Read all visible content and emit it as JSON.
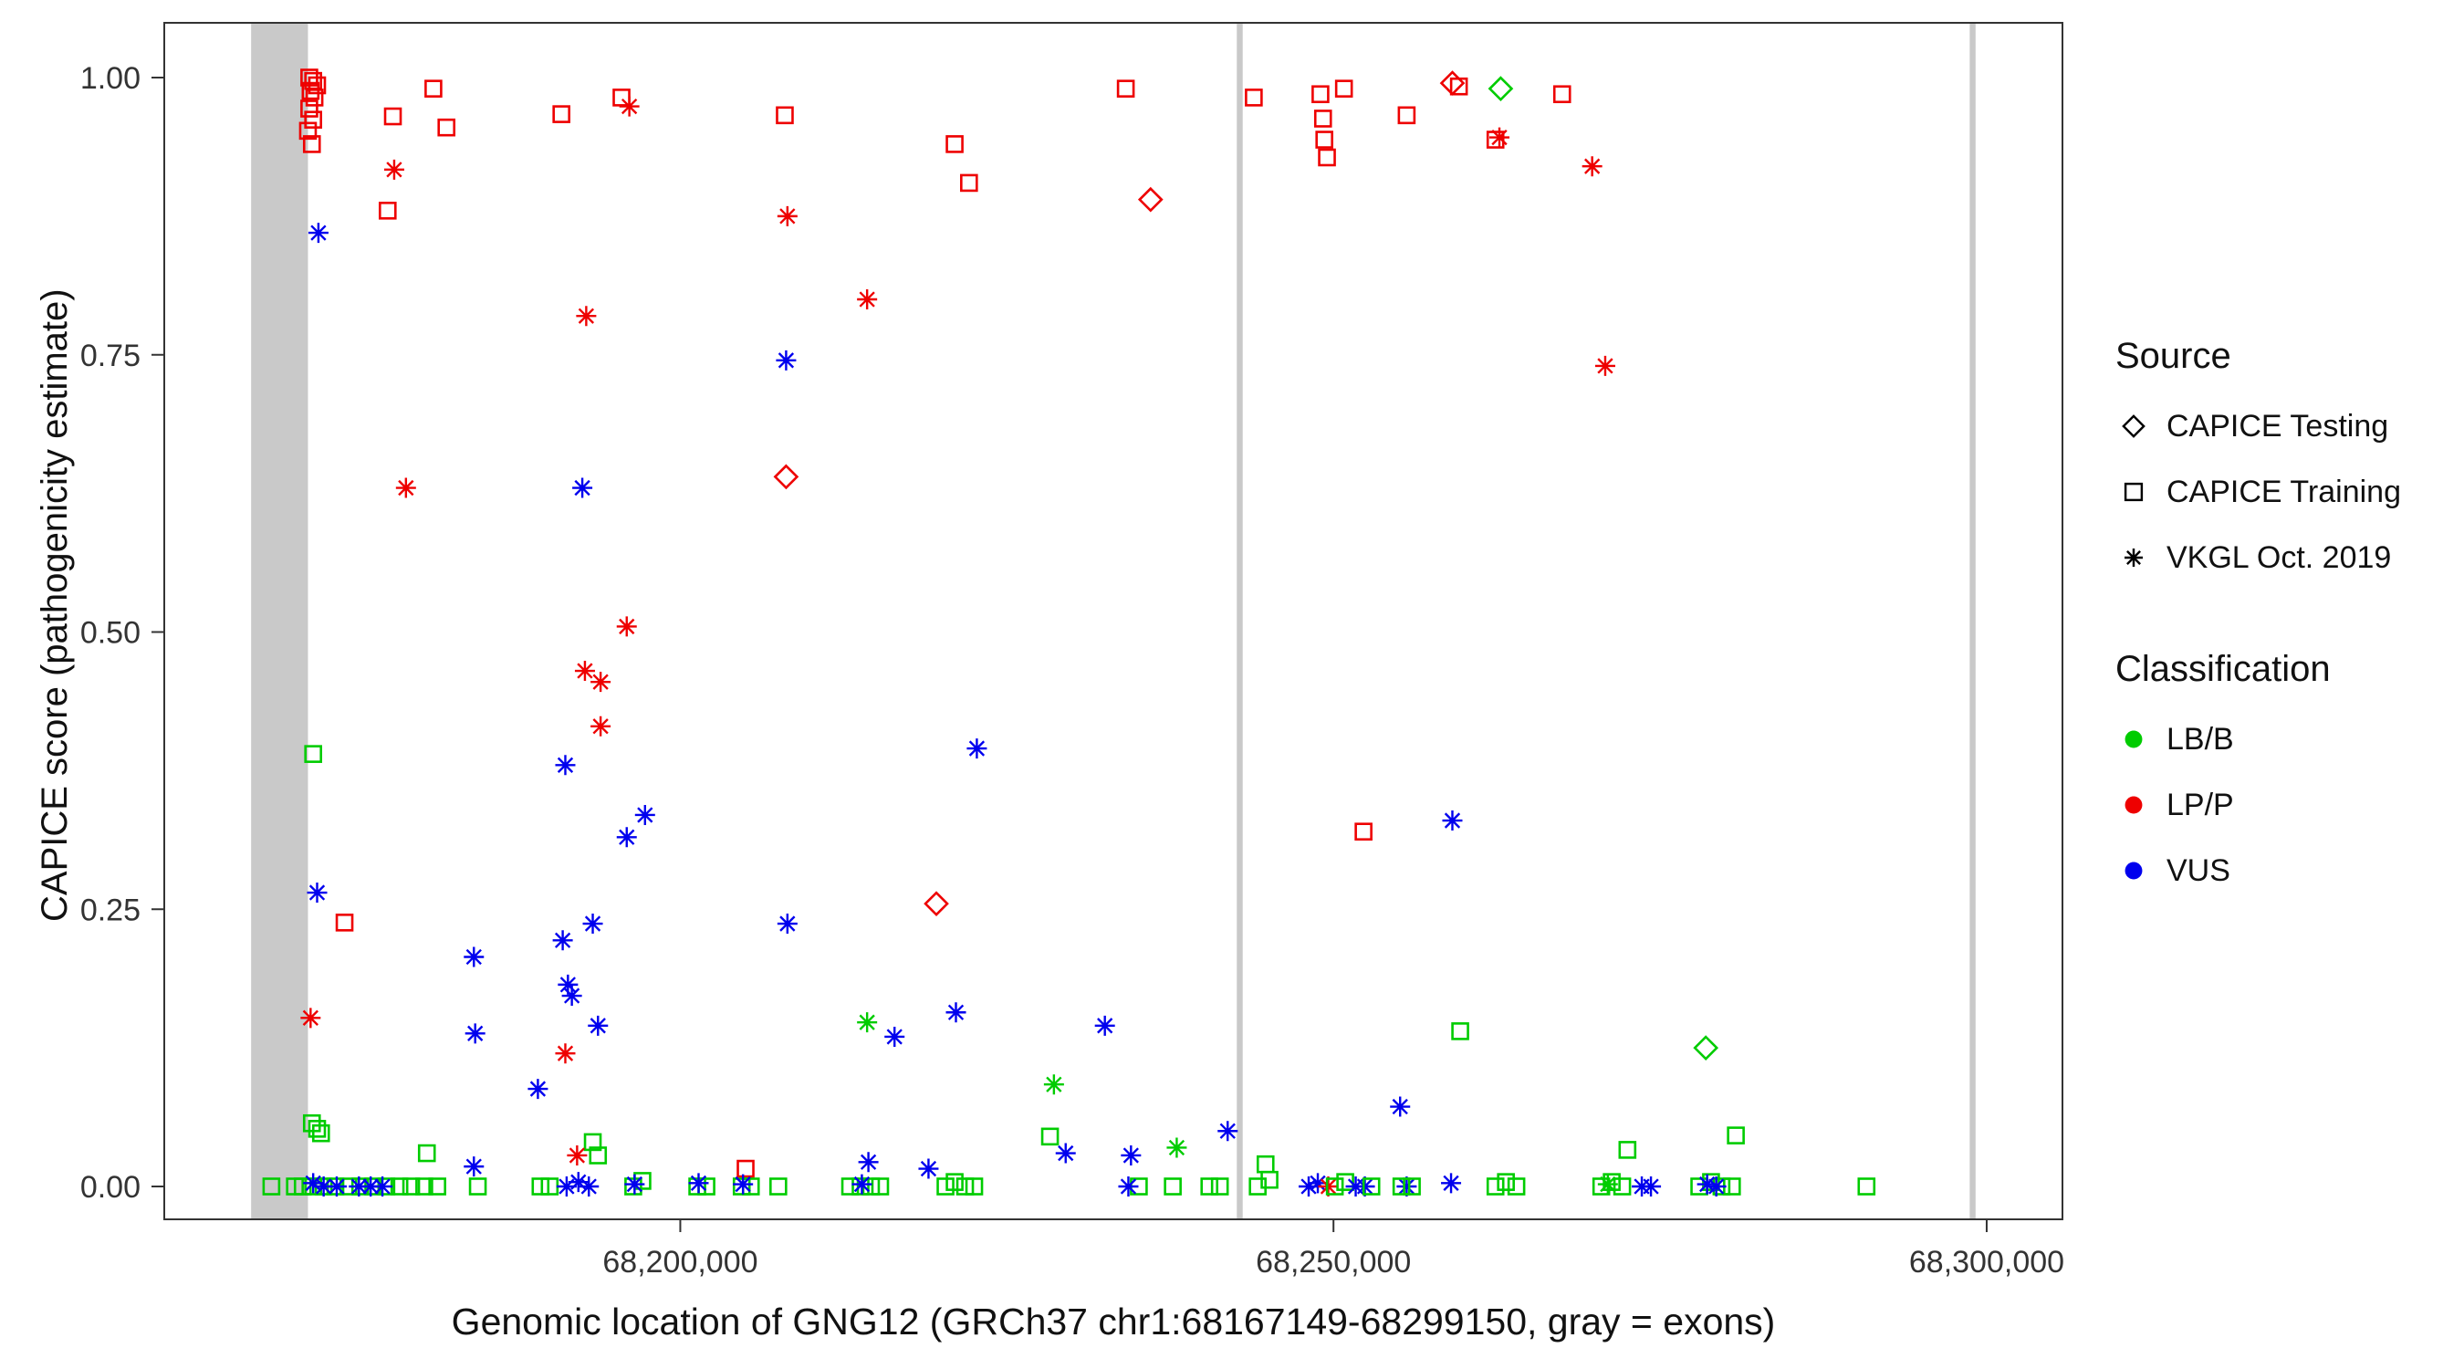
{
  "figure": {
    "ylabel": "CAPICE score (pathogenicity estimate)",
    "xlabel": "Genomic location of GNG12 (GRCh37 chr1:68167149-68299150, gray = exons)"
  },
  "legend": {
    "source_title": "Source",
    "source_items": [
      {
        "label": "CAPICE Testing",
        "shape": "diamond"
      },
      {
        "label": "CAPICE Training",
        "shape": "square"
      },
      {
        "label": "VKGL Oct. 2019",
        "shape": "asterisk"
      }
    ],
    "classification_title": "Classification",
    "classification_items": [
      {
        "label": "LB/B",
        "color": "#00cc00"
      },
      {
        "label": "LP/P",
        "color": "#ee0000"
      },
      {
        "label": "VUS",
        "color": "#0000ee"
      }
    ]
  },
  "chart_data": {
    "type": "scatter",
    "title": "",
    "xlabel": "Genomic location of GNG12 (GRCh37 chr1:68167149-68299150, gray = exons)",
    "ylabel": "CAPICE score (pathogenicity estimate)",
    "grid": "off",
    "legend_position": "right",
    "x_axis": {
      "min": 68160500,
      "max": 68305800,
      "ticks": [
        {
          "value": 68200000,
          "label": "68,200,000"
        },
        {
          "value": 68250000,
          "label": "68,250,000"
        },
        {
          "value": 68300000,
          "label": "68,300,000"
        }
      ]
    },
    "y_axis": {
      "min": -0.05,
      "max": 1.05,
      "ticks": [
        {
          "value": 0.0,
          "label": "0.00"
        },
        {
          "value": 0.25,
          "label": "0.25"
        },
        {
          "value": 0.5,
          "label": "0.50"
        },
        {
          "value": 0.75,
          "label": "0.75"
        },
        {
          "value": 1.0,
          "label": "1.00"
        }
      ]
    },
    "exon_band_color": "#c9c9c9",
    "exons_gray": [
      [
        68167149,
        68171500
      ],
      [
        68242600,
        68243050
      ],
      [
        68298700,
        68299150
      ]
    ],
    "source_shapes": {
      "T": "CAPICE Testing (open diamond)",
      "R": "CAPICE Training (open square)",
      "V": "VKGL Oct. 2019 (asterisk)"
    },
    "classification_colors": {
      "B": {
        "label": "LB/B",
        "hex": "#00cc00"
      },
      "P": {
        "label": "LP/P",
        "hex": "#ee0000"
      },
      "U": {
        "label": "VUS",
        "hex": "#0000ee"
      }
    },
    "point_format": [
      "genomic_position",
      "capice_score",
      "source",
      "classification"
    ],
    "points": [
      [
        68171600,
        1.0,
        "R",
        "P"
      ],
      [
        68171900,
        0.997,
        "R",
        "P"
      ],
      [
        68172200,
        0.993,
        "R",
        "P"
      ],
      [
        68171700,
        0.988,
        "R",
        "P"
      ],
      [
        68172000,
        0.982,
        "R",
        "P"
      ],
      [
        68171600,
        0.972,
        "R",
        "P"
      ],
      [
        68171900,
        0.962,
        "R",
        "P"
      ],
      [
        68171500,
        0.952,
        "R",
        "P"
      ],
      [
        68171800,
        0.94,
        "R",
        "P"
      ],
      [
        68172300,
        0.86,
        "V",
        "U"
      ],
      [
        68171900,
        0.39,
        "R",
        "B"
      ],
      [
        68172200,
        0.265,
        "V",
        "U"
      ],
      [
        68171700,
        0.152,
        "V",
        "P"
      ],
      [
        68174300,
        0.238,
        "R",
        "P"
      ],
      [
        68171800,
        0.057,
        "R",
        "B"
      ],
      [
        68172200,
        0.052,
        "R",
        "B"
      ],
      [
        68172500,
        0.048,
        "R",
        "B"
      ],
      [
        68168700,
        0,
        "R",
        "B"
      ],
      [
        68170500,
        0,
        "R",
        "B"
      ],
      [
        68171100,
        0,
        "R",
        "B"
      ],
      [
        68171900,
        0,
        "R",
        "B"
      ],
      [
        68172700,
        0,
        "R",
        "B"
      ],
      [
        68173600,
        0,
        "R",
        "B"
      ],
      [
        68174600,
        0,
        "R",
        "B"
      ],
      [
        68175500,
        0,
        "R",
        "B"
      ],
      [
        68176500,
        0,
        "R",
        "B"
      ],
      [
        68177500,
        0,
        "R",
        "B"
      ],
      [
        68178500,
        0,
        "R",
        "B"
      ],
      [
        68179400,
        0,
        "R",
        "B"
      ],
      [
        68180400,
        0,
        "R",
        "B"
      ],
      [
        68181400,
        0,
        "R",
        "B"
      ],
      [
        68171900,
        0.003,
        "V",
        "U"
      ],
      [
        68172700,
        0,
        "V",
        "U"
      ],
      [
        68173700,
        0,
        "V",
        "U"
      ],
      [
        68175400,
        0,
        "V",
        "U"
      ],
      [
        68176300,
        0,
        "V",
        "U"
      ],
      [
        68177200,
        0,
        "V",
        "U"
      ],
      [
        68178000,
        0.965,
        "R",
        "P"
      ],
      [
        68178100,
        0.917,
        "V",
        "P"
      ],
      [
        68177600,
        0.88,
        "R",
        "P"
      ],
      [
        68181100,
        0.99,
        "R",
        "P"
      ],
      [
        68182100,
        0.955,
        "R",
        "P"
      ],
      [
        68179000,
        0.63,
        "V",
        "P"
      ],
      [
        68180600,
        0.03,
        "R",
        "B"
      ],
      [
        68184200,
        0.207,
        "V",
        "U"
      ],
      [
        68184300,
        0.138,
        "V",
        "U"
      ],
      [
        68184200,
        0.018,
        "V",
        "U"
      ],
      [
        68184500,
        0,
        "R",
        "B"
      ],
      [
        68190900,
        0.967,
        "R",
        "P"
      ],
      [
        68195500,
        0.982,
        "R",
        "P"
      ],
      [
        68196100,
        0.974,
        "V",
        "P"
      ],
      [
        68192800,
        0.785,
        "V",
        "P"
      ],
      [
        68192500,
        0.63,
        "V",
        "U"
      ],
      [
        68195900,
        0.505,
        "V",
        "P"
      ],
      [
        68192700,
        0.465,
        "V",
        "P"
      ],
      [
        68193900,
        0.455,
        "V",
        "P"
      ],
      [
        68193900,
        0.415,
        "V",
        "P"
      ],
      [
        68191200,
        0.38,
        "V",
        "U"
      ],
      [
        68197300,
        0.335,
        "V",
        "U"
      ],
      [
        68195900,
        0.315,
        "V",
        "U"
      ],
      [
        68193300,
        0.237,
        "V",
        "U"
      ],
      [
        68191000,
        0.222,
        "V",
        "U"
      ],
      [
        68191400,
        0.182,
        "V",
        "U"
      ],
      [
        68191700,
        0.172,
        "V",
        "U"
      ],
      [
        68193700,
        0.145,
        "V",
        "U"
      ],
      [
        68191200,
        0.12,
        "V",
        "P"
      ],
      [
        68189100,
        0.088,
        "V",
        "U"
      ],
      [
        68193300,
        0.04,
        "R",
        "B"
      ],
      [
        68193700,
        0.028,
        "R",
        "B"
      ],
      [
        68192100,
        0.028,
        "V",
        "P"
      ],
      [
        68189300,
        0,
        "R",
        "B"
      ],
      [
        68190000,
        0,
        "R",
        "B"
      ],
      [
        68191300,
        0,
        "V",
        "U"
      ],
      [
        68192200,
        0.004,
        "V",
        "U"
      ],
      [
        68193000,
        0,
        "V",
        "U"
      ],
      [
        68196400,
        0,
        "R",
        "B"
      ],
      [
        68197100,
        0.005,
        "R",
        "B"
      ],
      [
        68196500,
        0.002,
        "V",
        "U"
      ],
      [
        68208000,
        0.966,
        "R",
        "P"
      ],
      [
        68208200,
        0.875,
        "V",
        "P"
      ],
      [
        68208100,
        0.745,
        "V",
        "U"
      ],
      [
        68208100,
        0.64,
        "T",
        "P"
      ],
      [
        68208200,
        0.237,
        "V",
        "U"
      ],
      [
        68205000,
        0.016,
        "R",
        "P"
      ],
      [
        68201300,
        0,
        "R",
        "B"
      ],
      [
        68202000,
        0,
        "R",
        "B"
      ],
      [
        68204700,
        0,
        "R",
        "B"
      ],
      [
        68205400,
        0,
        "R",
        "B"
      ],
      [
        68207500,
        0,
        "R",
        "B"
      ],
      [
        68201400,
        0.003,
        "V",
        "U"
      ],
      [
        68204800,
        0.002,
        "V",
        "U"
      ],
      [
        68214300,
        0.8,
        "V",
        "P"
      ],
      [
        68221000,
        0.94,
        "R",
        "P"
      ],
      [
        68222100,
        0.905,
        "R",
        "P"
      ],
      [
        68222700,
        0.395,
        "V",
        "U"
      ],
      [
        68219600,
        0.255,
        "T",
        "P"
      ],
      [
        68214300,
        0.148,
        "V",
        "B"
      ],
      [
        68216400,
        0.135,
        "V",
        "U"
      ],
      [
        68221100,
        0.157,
        "V",
        "U"
      ],
      [
        68214400,
        0.022,
        "V",
        "U"
      ],
      [
        68219000,
        0.016,
        "V",
        "U"
      ],
      [
        68213000,
        0,
        "R",
        "B"
      ],
      [
        68213800,
        0,
        "R",
        "B"
      ],
      [
        68214600,
        0,
        "R",
        "B"
      ],
      [
        68215300,
        0,
        "R",
        "B"
      ],
      [
        68220300,
        0,
        "R",
        "B"
      ],
      [
        68221000,
        0.004,
        "R",
        "B"
      ],
      [
        68221800,
        0,
        "R",
        "B"
      ],
      [
        68222500,
        0,
        "R",
        "B"
      ],
      [
        68213900,
        0.002,
        "V",
        "U"
      ],
      [
        68234100,
        0.99,
        "R",
        "P"
      ],
      [
        68236000,
        0.89,
        "T",
        "P"
      ],
      [
        68232500,
        0.145,
        "V",
        "U"
      ],
      [
        68228600,
        0.092,
        "V",
        "B"
      ],
      [
        68228300,
        0.045,
        "R",
        "B"
      ],
      [
        68229500,
        0.03,
        "V",
        "U"
      ],
      [
        68234500,
        0.028,
        "V",
        "U"
      ],
      [
        68238000,
        0.035,
        "V",
        "B"
      ],
      [
        68241900,
        0.05,
        "V",
        "U"
      ],
      [
        68235100,
        0,
        "R",
        "B"
      ],
      [
        68237700,
        0,
        "R",
        "B"
      ],
      [
        68240500,
        0,
        "R",
        "B"
      ],
      [
        68241300,
        0,
        "R",
        "B"
      ],
      [
        68234300,
        0,
        "V",
        "U"
      ],
      [
        68243900,
        0.982,
        "R",
        "P"
      ],
      [
        68249000,
        0.985,
        "R",
        "P"
      ],
      [
        68250800,
        0.99,
        "R",
        "P"
      ],
      [
        68249200,
        0.963,
        "R",
        "P"
      ],
      [
        68249300,
        0.944,
        "R",
        "P"
      ],
      [
        68249500,
        0.928,
        "R",
        "P"
      ],
      [
        68252300,
        0.32,
        "R",
        "P"
      ],
      [
        68244800,
        0.02,
        "R",
        "B"
      ],
      [
        68244200,
        0,
        "R",
        "B"
      ],
      [
        68245100,
        0.006,
        "R",
        "B"
      ],
      [
        68248100,
        0,
        "V",
        "U"
      ],
      [
        68248800,
        0.003,
        "V",
        "U"
      ],
      [
        68249600,
        0,
        "V",
        "P"
      ],
      [
        68250100,
        0,
        "R",
        "B"
      ],
      [
        68250900,
        0.004,
        "R",
        "B"
      ],
      [
        68251700,
        0,
        "V",
        "U"
      ],
      [
        68252400,
        0,
        "V",
        "U"
      ],
      [
        68252900,
        0,
        "R",
        "B"
      ],
      [
        68255600,
        0.966,
        "R",
        "P"
      ],
      [
        68259100,
        0.995,
        "T",
        "P"
      ],
      [
        68259600,
        0.992,
        "R",
        "P"
      ],
      [
        68262800,
        0.99,
        "T",
        "B"
      ],
      [
        68262400,
        0.944,
        "R",
        "P"
      ],
      [
        68262700,
        0.946,
        "V",
        "P"
      ],
      [
        68259100,
        0.33,
        "V",
        "U"
      ],
      [
        68259700,
        0.14,
        "R",
        "B"
      ],
      [
        68255100,
        0.072,
        "V",
        "U"
      ],
      [
        68255600,
        0,
        "V",
        "U"
      ],
      [
        68259000,
        0.003,
        "V",
        "U"
      ],
      [
        68255200,
        0,
        "R",
        "B"
      ],
      [
        68256000,
        0,
        "R",
        "B"
      ],
      [
        68262400,
        0,
        "R",
        "B"
      ],
      [
        68263200,
        0.004,
        "R",
        "B"
      ],
      [
        68264000,
        0,
        "R",
        "B"
      ],
      [
        68267500,
        0.985,
        "R",
        "P"
      ],
      [
        68269800,
        0.92,
        "V",
        "P"
      ],
      [
        68270800,
        0.74,
        "V",
        "P"
      ],
      [
        68278500,
        0.125,
        "T",
        "B"
      ],
      [
        68272500,
        0.033,
        "R",
        "B"
      ],
      [
        68280800,
        0.046,
        "R",
        "B"
      ],
      [
        68270500,
        0,
        "R",
        "B"
      ],
      [
        68271300,
        0.004,
        "R",
        "B"
      ],
      [
        68272100,
        0,
        "R",
        "B"
      ],
      [
        68271000,
        0.002,
        "V",
        "B"
      ],
      [
        68273600,
        0,
        "V",
        "U"
      ],
      [
        68274300,
        0,
        "V",
        "U"
      ],
      [
        68278000,
        0,
        "R",
        "B"
      ],
      [
        68278900,
        0.004,
        "R",
        "B"
      ],
      [
        68279700,
        0,
        "R",
        "B"
      ],
      [
        68280500,
        0,
        "R",
        "B"
      ],
      [
        68278600,
        0.002,
        "V",
        "U"
      ],
      [
        68279300,
        0,
        "V",
        "U"
      ],
      [
        68290800,
        0,
        "R",
        "B"
      ]
    ]
  }
}
